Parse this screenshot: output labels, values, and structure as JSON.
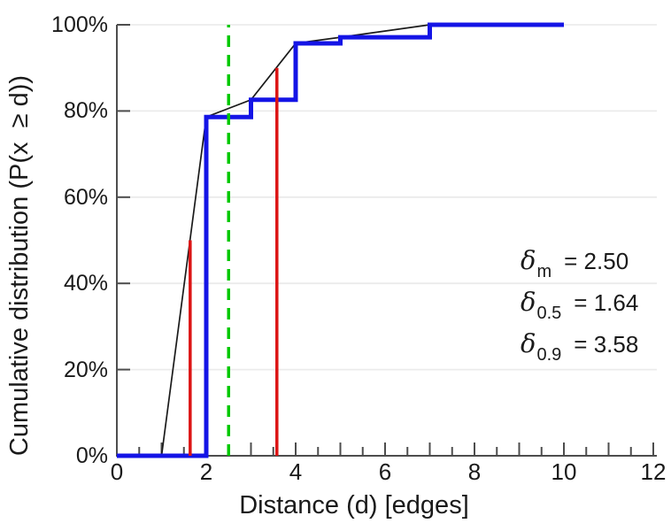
{
  "chart_data": {
    "type": "line",
    "title": "",
    "xlabel": "Distance (d) [edges]",
    "ylabel": "Cumulative distribution (P(x  ≥ d))",
    "xlim": [
      0,
      12
    ],
    "ylim": [
      0,
      100
    ],
    "x_labeled_ticks": [
      0,
      2,
      4,
      6,
      8,
      10,
      12
    ],
    "x_tick_labels": [
      "0",
      "2",
      "4",
      "6",
      "8",
      "10",
      "12"
    ],
    "x_major_tick_step": 1,
    "x_minor_tick_step": 0.5,
    "y_ticks": [
      0,
      20,
      40,
      60,
      80,
      100
    ],
    "y_tick_labels": [
      "0%",
      "20%",
      "40%",
      "60%",
      "80%",
      "100%"
    ],
    "grid": "horizontal-only",
    "legend": "none",
    "series": [
      {
        "name": "empirical-cdf-steps",
        "type": "step-post",
        "color": "#1414e6",
        "line_width": 5,
        "x": [
          0,
          2,
          3,
          4,
          5,
          7
        ],
        "y": [
          0,
          78.6,
          82.6,
          95.7,
          97.1,
          100
        ],
        "x_end": 10
      },
      {
        "name": "interpolated-cdf",
        "type": "line",
        "color": "#1a1a1a",
        "line_width": 1.7,
        "points": [
          [
            1,
            0
          ],
          [
            2,
            78.6
          ],
          [
            3,
            82.6
          ],
          [
            4,
            95.7
          ],
          [
            5,
            97.1
          ],
          [
            7,
            100
          ],
          [
            10,
            100
          ]
        ]
      },
      {
        "name": "percentile-50-stem",
        "type": "vstem",
        "color": "#dc1414",
        "line_width": 3.5,
        "x": 1.64,
        "y_top": 50
      },
      {
        "name": "percentile-90-stem",
        "type": "vstem",
        "color": "#dc1414",
        "line_width": 3.5,
        "x": 3.58,
        "y_top": 90
      },
      {
        "name": "mean-vline",
        "type": "vline-dashed",
        "color": "#00c800",
        "line_width": 3.5,
        "x": 2.5,
        "y_top": 100
      }
    ],
    "annotations": [
      {
        "symbol": "δ",
        "subscript": "m",
        "value": "= 2.50"
      },
      {
        "symbol": "δ",
        "subscript": "0.5",
        "value": "= 1.64"
      },
      {
        "symbol": "δ",
        "subscript": "0.9",
        "value": "= 3.58"
      }
    ],
    "colors": {
      "steps": "#1414e6",
      "interpolation": "#1a1a1a",
      "stems": "#dc1414",
      "mean": "#00c800",
      "grid": "#ebebeb",
      "axis": "#4d4d4d",
      "text": "#1a1a1a"
    }
  }
}
